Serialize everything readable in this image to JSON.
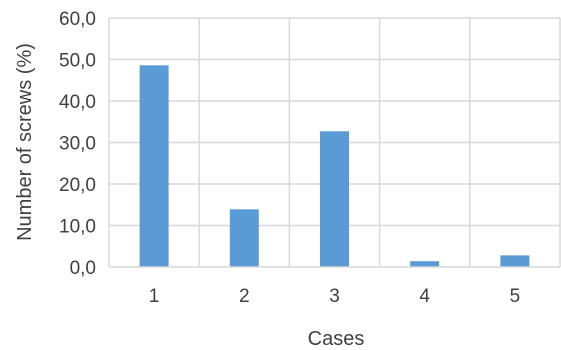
{
  "chart_data": {
    "type": "bar",
    "categories": [
      "1",
      "2",
      "3",
      "4",
      "5"
    ],
    "values": [
      48.6,
      13.9,
      32.7,
      1.4,
      2.8
    ],
    "title": "",
    "xlabel": "Cases",
    "ylabel": "Number of screws (%)",
    "ylim": [
      0,
      60
    ],
    "yticks": [
      "0,0",
      "10,0",
      "20,0",
      "30,0",
      "40,0",
      "50,0",
      "60,0"
    ],
    "grid": true,
    "legend": "none",
    "bar_color": "#5b9bd5",
    "grid_color": "#d9d9d9"
  }
}
